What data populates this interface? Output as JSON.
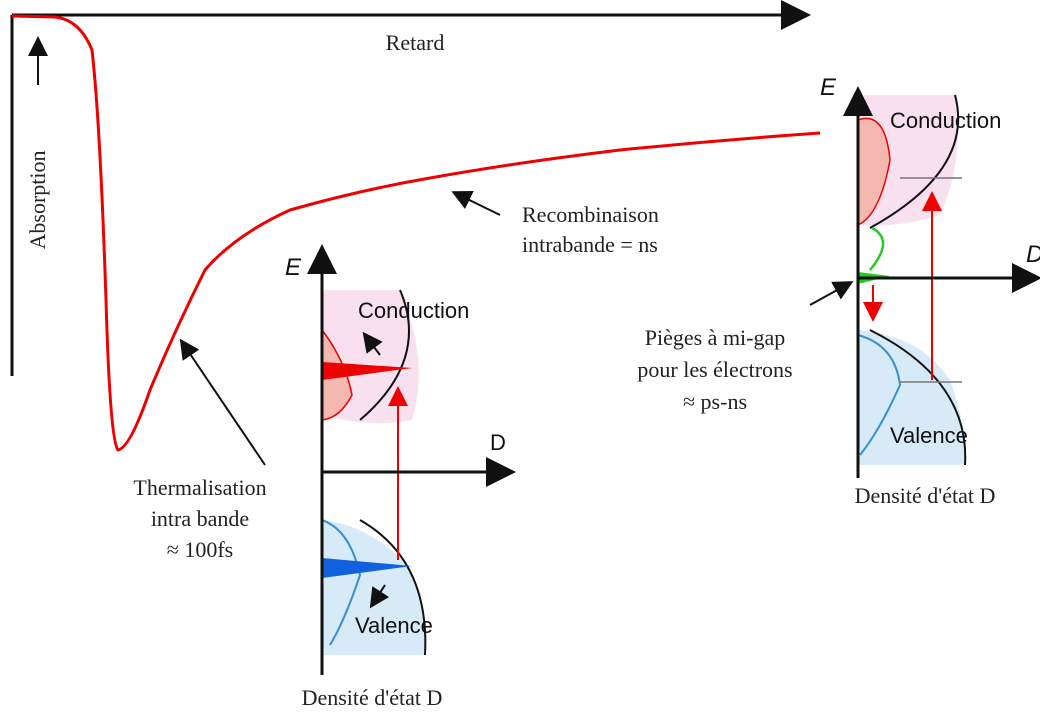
{
  "main_plot": {
    "x_axis_label": "Retard",
    "y_axis_label": "Absorption"
  },
  "annotations": [
    {
      "lines": [
        "Recombinaison",
        "intrabande = ns"
      ]
    },
    {
      "lines": [
        "Thermalisation",
        "intra bande",
        "≈ 100fs"
      ]
    },
    {
      "lines": [
        "Pièges à mi-gap",
        "pour les électrons",
        "≈ ps-ns"
      ]
    }
  ],
  "insets": [
    {
      "energy_axis": "E",
      "density_axis": "D",
      "upper_band": "Conduction",
      "lower_band": "Valence",
      "caption": "Densité d'état D"
    },
    {
      "energy_axis": "E",
      "density_axis": "D",
      "upper_band": "Conduction",
      "lower_band": "Valence",
      "caption": "Densité d'état D"
    }
  ]
}
